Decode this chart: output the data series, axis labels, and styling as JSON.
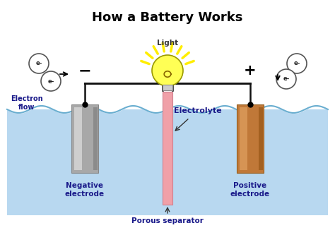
{
  "title": "How a Battery Works",
  "title_fontsize": 13,
  "title_fontweight": "bold",
  "bg_color": "#ffffff",
  "water_color": "#b8d8f0",
  "wire_color": "#111111",
  "labels": {
    "negative_electrode": "Negative\nelectrode",
    "positive_electrode": "Positive\nelectrode",
    "porous_separator": "Porous separator",
    "electrolyte": "Electrolyte",
    "electron_flow": "Electron\nflow",
    "light": "Light",
    "minus": "−",
    "plus": "+"
  },
  "figsize": [
    4.74,
    3.33
  ],
  "dpi": 100
}
